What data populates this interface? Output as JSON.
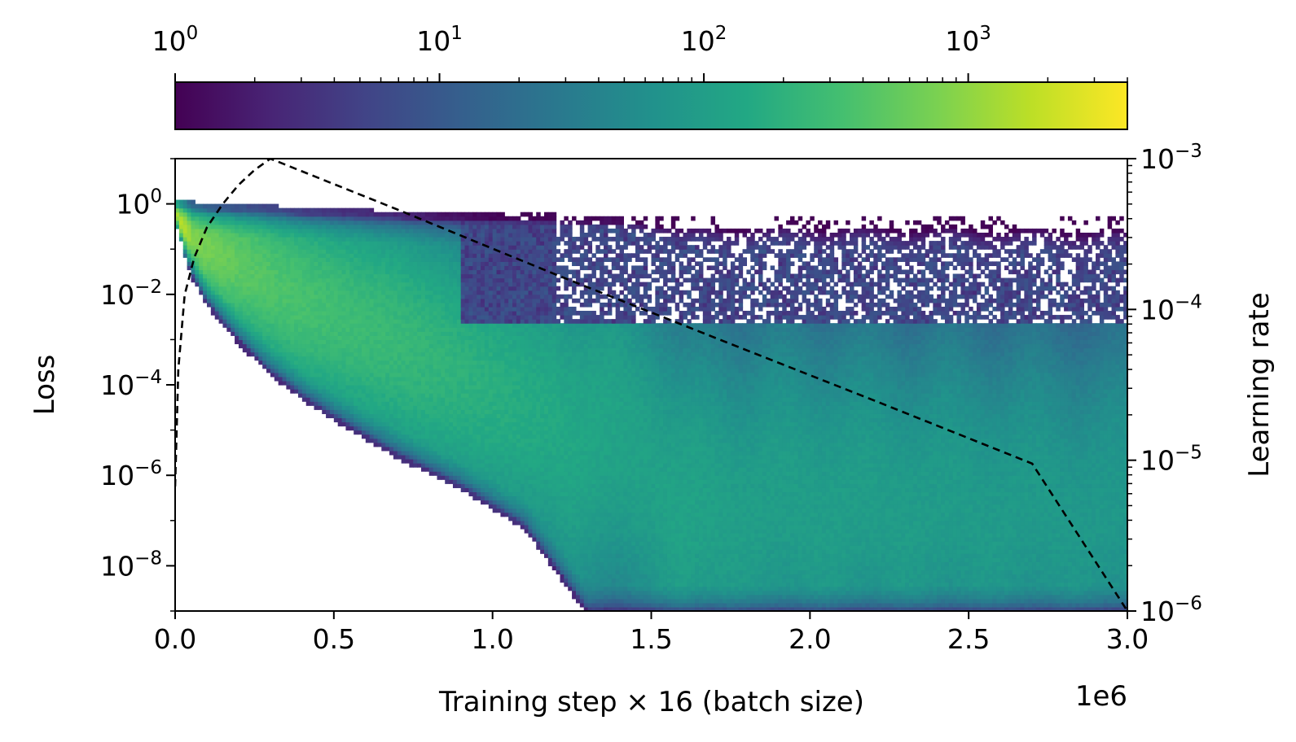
{
  "chart_data": {
    "type": "heatmap",
    "xlabel": "Training step × 16 (batch size)",
    "x_offset_label": "1e6",
    "ylabel": "Loss",
    "y2label": "Learning rate",
    "xlim": [
      0,
      3000000
    ],
    "ylim": [
      1e-09,
      10
    ],
    "y2lim": [
      1e-06,
      0.001
    ],
    "yscale": "log",
    "y2scale": "log",
    "grid": false,
    "x_ticks": [
      {
        "value": 0,
        "label": "0.0"
      },
      {
        "value": 500000,
        "label": "0.5"
      },
      {
        "value": 1000000,
        "label": "1.0"
      },
      {
        "value": 1500000,
        "label": "1.5"
      },
      {
        "value": 2000000,
        "label": "2.0"
      },
      {
        "value": 2500000,
        "label": "2.5"
      },
      {
        "value": 3000000,
        "label": "3.0"
      }
    ],
    "y_ticks": [
      {
        "exp": 0,
        "base": "10",
        "sup": "0"
      },
      {
        "exp": -2,
        "base": "10",
        "sup": "−2"
      },
      {
        "exp": -4,
        "base": "10",
        "sup": "−4"
      },
      {
        "exp": -6,
        "base": "10",
        "sup": "−6"
      },
      {
        "exp": -8,
        "base": "10",
        "sup": "−8"
      }
    ],
    "y2_ticks": [
      {
        "exp": -3,
        "base": "10",
        "sup": "−3"
      },
      {
        "exp": -4,
        "base": "10",
        "sup": "−4"
      },
      {
        "exp": -5,
        "base": "10",
        "sup": "−5"
      },
      {
        "exp": -6,
        "base": "10",
        "sup": "−6"
      }
    ],
    "colorbar": {
      "scale": "log",
      "range": [
        1,
        4000
      ],
      "colormap": "viridis",
      "orientation": "horizontal",
      "position": "top",
      "ticks": [
        {
          "exp": 0,
          "base": "10",
          "sup": "0"
        },
        {
          "exp": 1,
          "base": "10",
          "sup": "1"
        },
        {
          "exp": 2,
          "base": "10",
          "sup": "2"
        },
        {
          "exp": 3,
          "base": "10",
          "sup": "3"
        }
      ]
    },
    "learning_rate_line": {
      "style": "dashed",
      "color": "#000000",
      "x": [
        0,
        10000,
        30000,
        60000,
        100000,
        150000,
        200000,
        250000,
        300000,
        700000,
        1200000,
        1700000,
        2200000,
        2700000,
        3000000
      ],
      "y": [
        6.7e-06,
        4e-05,
        0.000125,
        0.00022,
        0.00035,
        0.0005,
        0.00067,
        0.00084,
        0.001,
        0.00046,
        0.00017,
        6.5e-05,
        2.5e-05,
        9.5e-06,
        1e-06
      ]
    },
    "density_summary": {
      "x": [
        0,
        50000,
        100000,
        200000,
        300000,
        400000,
        500000,
        700000,
        900000,
        1100000,
        1300000,
        1500000,
        1600000,
        1800000,
        2000000,
        2500000,
        3000000
      ],
      "upper_edge": [
        0.9,
        0.8,
        0.75,
        0.7,
        0.65,
        0.6,
        0.55,
        0.5,
        0.45,
        0.45,
        0.4,
        0.35,
        0.35,
        0.35,
        0.35,
        0.35,
        0.35
      ],
      "lower_edge": [
        0.5,
        0.03,
        0.007,
        0.001,
        0.0002,
        6e-05,
        2e-05,
        3e-06,
        6e-07,
        8e-08,
        1e-09,
        1e-09,
        1e-09,
        1e-09,
        1e-09,
        1e-09,
        1e-09
      ],
      "peak_density_loss": [
        0.6,
        0.25,
        0.12,
        0.05,
        0.02,
        0.008,
        0.004,
        0.001,
        0.0002,
        4e-05,
        1e-05,
        3e-06,
        1e-07,
        2e-07,
        2e-07,
        1.5e-07,
        1e-07
      ],
      "peak_count": [
        4000,
        900,
        700,
        500,
        400,
        350,
        300,
        250,
        200,
        160,
        130,
        110,
        120,
        100,
        100,
        90,
        80
      ]
    }
  }
}
